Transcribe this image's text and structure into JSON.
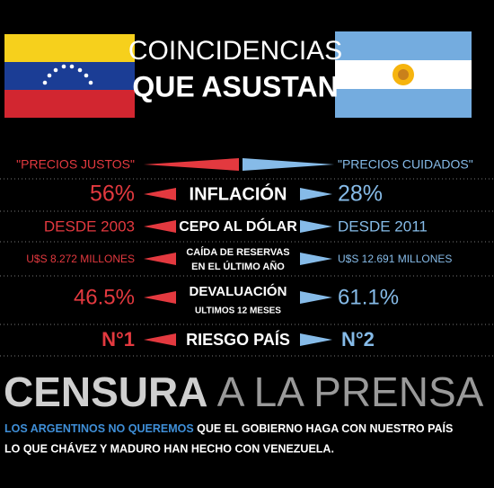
{
  "header": {
    "title_lines": [
      "COINCIDENCIAS",
      "QUE ASUSTAN"
    ]
  },
  "rows": [
    {
      "left": "\"PRECIOS JUSTOS\"",
      "right": "\"PRECIOS CUIDADOS\""
    },
    {
      "left": "56%",
      "center": [
        "INFLACIÓN"
      ],
      "right": "28%"
    },
    {
      "left": "DESDE 2003",
      "center": [
        "CEPO AL DÓLAR"
      ],
      "right": "DESDE  2011"
    },
    {
      "left": "U$S 8.272  MILLONES",
      "center": [
        "CAÍDA DE RESERVAS",
        "EN EL ÚLTIMO AÑO"
      ],
      "right": "U$S 12.691 MILLONES"
    },
    {
      "left": "46.5%",
      "center": [
        "DEVALUACIÓN",
        "ULTIMOS 12 MESES"
      ],
      "right": "61.1%"
    },
    {
      "left": "N°1",
      "center": [
        "RIESGO PAÍS"
      ],
      "right": "N°2"
    }
  ],
  "footer": {
    "headline": [
      "CENSURA",
      "A LA PRENSA"
    ],
    "text": {
      "highlight": "LOS ARGENTINOS NO QUEREMOS",
      "line1": "QUE EL GOBIERNO HAGA CON NUESTRO PAÍS",
      "line2": "LO QUE CHÁVEZ Y MADURO HAN HECHO CON VENEZUELA."
    }
  }
}
